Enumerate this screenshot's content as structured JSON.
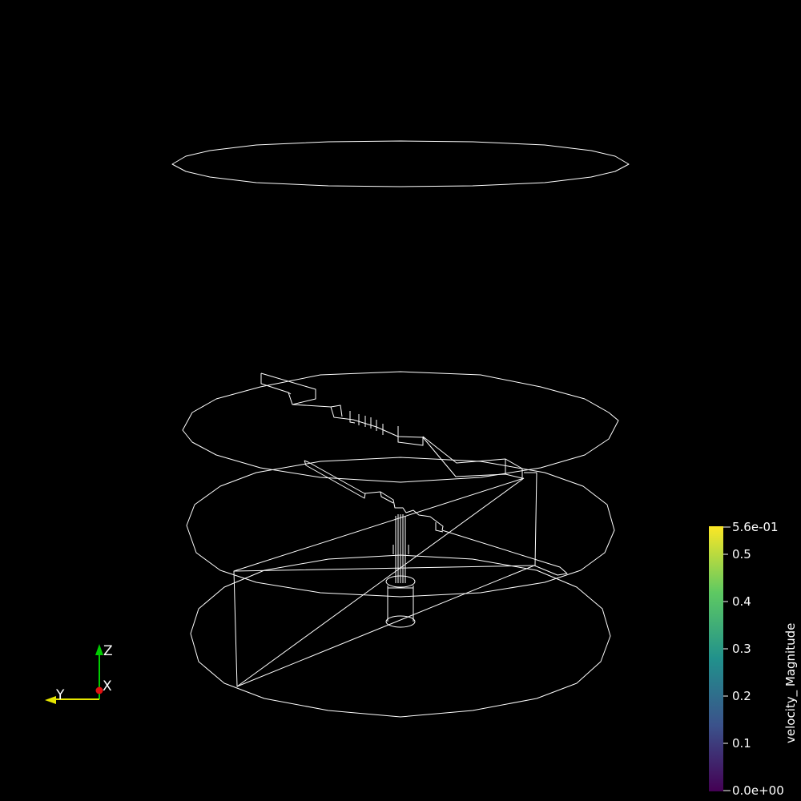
{
  "orientation_axes": {
    "z_label": "Z",
    "x_label": "X",
    "y_label": "Y",
    "z_color": "#00cc00",
    "x_color": "#e01010",
    "y_color": "#e6e600"
  },
  "colorbar": {
    "title": "velocity_ Magnitude",
    "max_label": "5.6e-01",
    "min_label": "0.0e+00",
    "ticks": [
      "0.5",
      "0.4",
      "0.3",
      "0.2",
      "0.1"
    ],
    "colormap": "viridis",
    "colors": [
      "#440154",
      "#3b528b",
      "#21918c",
      "#5ec962",
      "#fde725"
    ]
  },
  "scene": {
    "background": "#000000",
    "wire_color": "#ffffff",
    "representation": "wireframe"
  }
}
